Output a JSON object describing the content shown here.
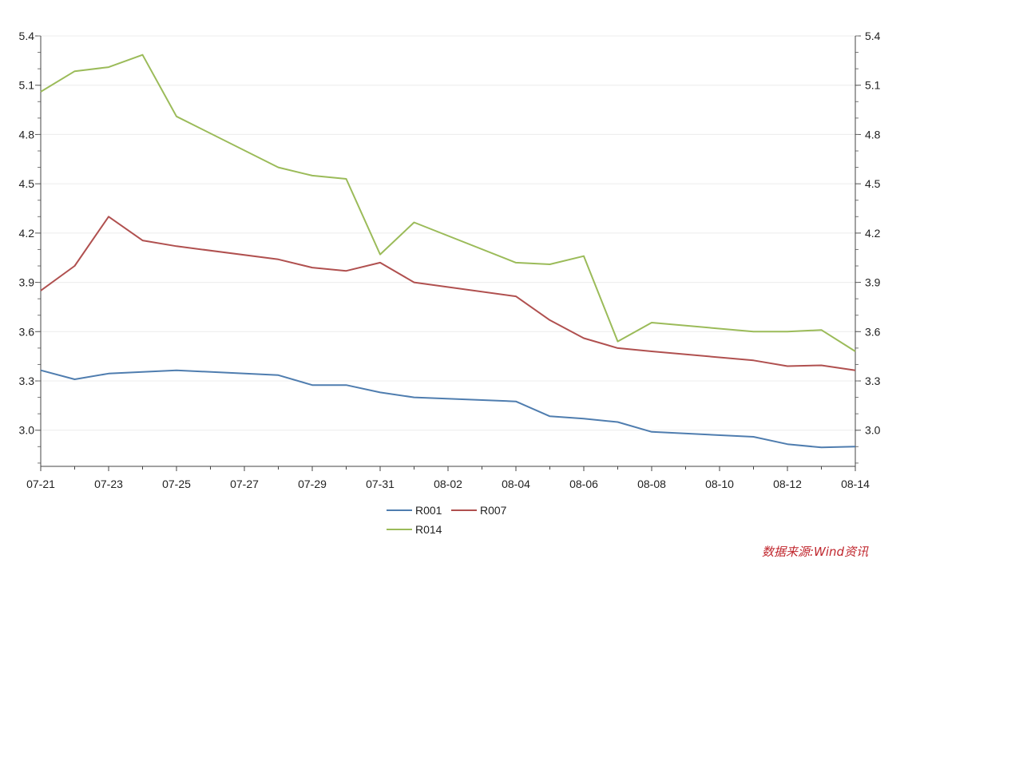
{
  "chart_data": {
    "type": "line",
    "title": "",
    "xlabel": "",
    "ylabel": "",
    "ylim": [
      2.78,
      5.4
    ],
    "y_ticks": [
      "3.0",
      "3.3",
      "3.6",
      "3.9",
      "4.2",
      "4.5",
      "4.8",
      "5.1",
      "5.4"
    ],
    "x_tick_labels": [
      "07-21",
      "07-23",
      "07-25",
      "07-27",
      "07-29",
      "07-31",
      "08-02",
      "08-04",
      "08-06",
      "08-08",
      "08-10",
      "08-12",
      "08-14"
    ],
    "x": [
      "07-21",
      "07-22",
      "07-23",
      "07-24",
      "07-25",
      "07-26",
      "07-27",
      "07-28",
      "07-29",
      "07-30",
      "07-31",
      "08-01",
      "08-02",
      "08-03",
      "08-04",
      "08-05",
      "08-06",
      "08-07",
      "08-08",
      "08-09",
      "08-10",
      "08-11",
      "08-12",
      "08-13",
      "08-14"
    ],
    "series": [
      {
        "name": "R001",
        "color": "#4f7daf",
        "values": [
          3.365,
          3.31,
          3.345,
          3.355,
          3.365,
          null,
          null,
          3.335,
          3.275,
          3.275,
          3.23,
          3.2,
          null,
          null,
          3.175,
          3.085,
          3.07,
          3.05,
          2.99,
          null,
          null,
          2.96,
          2.915,
          2.895,
          2.9
        ]
      },
      {
        "name": "R007",
        "color": "#b0504f",
        "values": [
          3.85,
          4.0,
          4.3,
          4.155,
          4.12,
          null,
          null,
          4.04,
          3.99,
          3.97,
          4.02,
          3.9,
          null,
          null,
          3.815,
          3.67,
          3.56,
          3.5,
          3.48,
          null,
          null,
          3.425,
          3.39,
          3.395,
          3.365
        ]
      },
      {
        "name": "R014",
        "color": "#9bbb59",
        "values": [
          5.06,
          5.185,
          5.21,
          5.285,
          4.91,
          null,
          null,
          4.6,
          4.55,
          4.53,
          4.07,
          4.265,
          null,
          null,
          4.02,
          4.01,
          4.06,
          3.54,
          3.655,
          null,
          null,
          3.6,
          3.6,
          3.61,
          3.48
        ]
      }
    ],
    "legend_position": "bottom-center"
  },
  "source_note": "数据来源:Wind资讯"
}
